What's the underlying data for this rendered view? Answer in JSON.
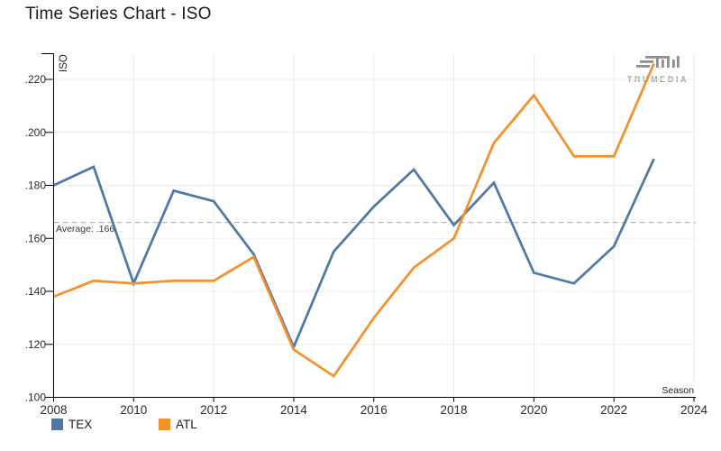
{
  "header": {
    "title": "Time Series Chart - ISO"
  },
  "branding": {
    "logo_text": "TRUMEDIA",
    "logo_icon": "trumedia-bars-icon",
    "logo_color": "#9a9a9a"
  },
  "chart_data": {
    "type": "line",
    "title": "Time Series Chart - ISO",
    "xlabel": "Season",
    "ylabel": "ISO",
    "x": [
      2008,
      2009,
      2010,
      2011,
      2012,
      2013,
      2014,
      2015,
      2016,
      2017,
      2018,
      2019,
      2020,
      2021,
      2022,
      2023
    ],
    "series": [
      {
        "name": "TEX",
        "color": "#4e79a7",
        "values": [
          0.18,
          0.187,
          0.143,
          0.178,
          0.174,
          0.154,
          0.119,
          0.155,
          0.172,
          0.186,
          0.165,
          0.181,
          0.147,
          0.143,
          0.157,
          0.19
        ]
      },
      {
        "name": "ATL",
        "color": "#f5912c",
        "values": [
          0.138,
          0.144,
          0.143,
          0.144,
          0.144,
          0.153,
          0.118,
          0.108,
          0.13,
          0.149,
          0.16,
          0.196,
          0.214,
          0.191,
          0.191,
          0.226
        ]
      }
    ],
    "average_line": {
      "value": 0.166,
      "label": "Average: .166",
      "style": "dashed",
      "color": "#b9b9b9"
    },
    "x_ticks": [
      2008,
      2010,
      2012,
      2014,
      2016,
      2018,
      2020,
      2022,
      2024
    ],
    "y_ticks": [
      {
        "value": 0.22,
        "label": ".220"
      },
      {
        "value": 0.2,
        "label": ".200"
      },
      {
        "value": 0.18,
        "label": ".180"
      },
      {
        "value": 0.16,
        "label": ".160"
      },
      {
        "value": 0.14,
        "label": ".140"
      },
      {
        "value": 0.12,
        "label": ".120"
      },
      {
        "value": 0.1,
        "label": ".100"
      }
    ],
    "xlim": [
      2008,
      2024
    ],
    "ylim": [
      0.1,
      0.22
    ],
    "grid": true,
    "legend_position": "bottom-left",
    "legend": [
      "TEX",
      "ATL"
    ]
  }
}
